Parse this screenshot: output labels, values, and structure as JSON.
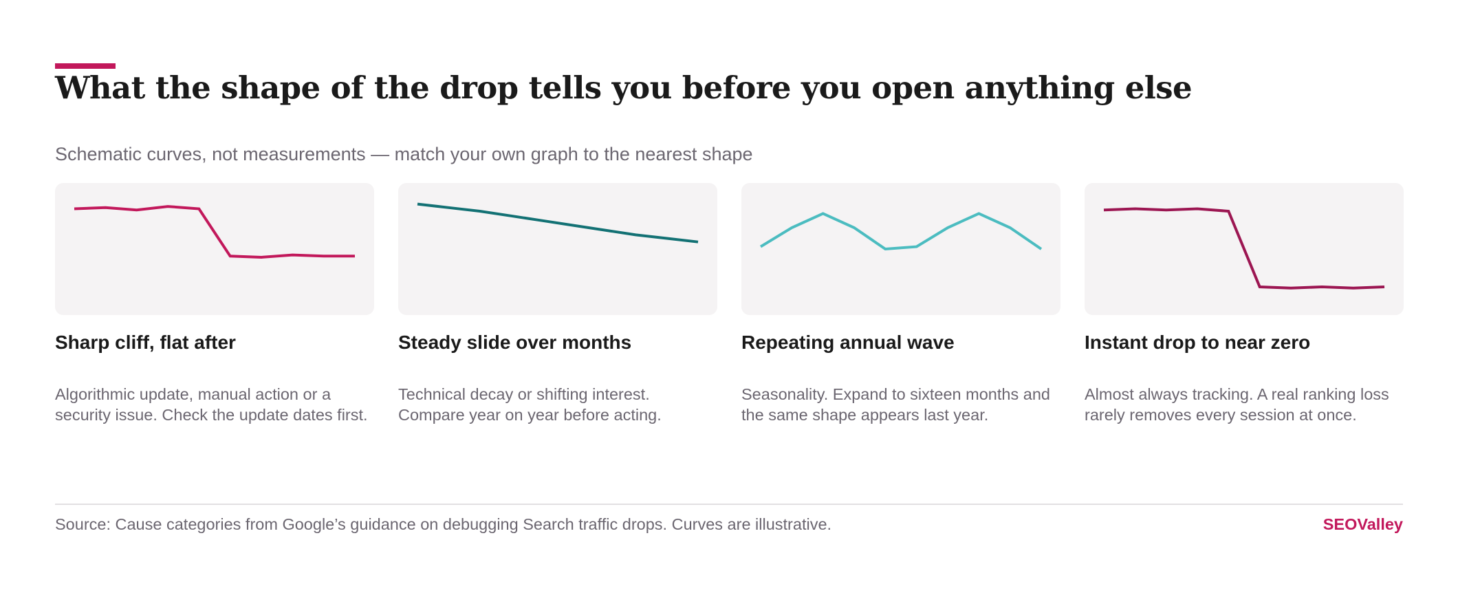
{
  "header": {
    "title": "What the shape of the drop tells you before you open anything else",
    "subtitle": "Schematic curves, not measurements — match your own graph to the nearest shape",
    "accent_color": "#c2185b"
  },
  "chart_data": [
    {
      "type": "line",
      "title": "Sharp cliff, flat after",
      "description": "Algorithmic update, manual action or a security issue. Check the update dates first.",
      "color": "#c2185b",
      "x": [
        0,
        1,
        2,
        3,
        4,
        5,
        6,
        7,
        8,
        9
      ],
      "values": [
        84,
        85,
        83,
        86,
        84,
        44,
        43,
        45,
        44,
        44
      ],
      "ylim": [
        0,
        100
      ],
      "grid": false
    },
    {
      "type": "line",
      "title": "Steady slide over months",
      "description": "Technical decay or shifting interest. Compare year on year before acting.",
      "color": "#137174",
      "x": [
        0,
        1,
        2,
        3,
        4,
        5,
        6,
        7,
        8,
        9
      ],
      "values": [
        88,
        85,
        82,
        78,
        74,
        70,
        66,
        62,
        59,
        56
      ],
      "ylim": [
        0,
        100
      ],
      "grid": false
    },
    {
      "type": "line",
      "title": "Repeating annual wave",
      "description": "Seasonality. Expand to sixteen months and the same shape appears last year.",
      "color": "#4bbcc0",
      "x": [
        0,
        1,
        2,
        3,
        4,
        5,
        6,
        7,
        8,
        9
      ],
      "values": [
        52,
        68,
        80,
        68,
        50,
        52,
        68,
        80,
        68,
        50
      ],
      "ylim": [
        0,
        100
      ],
      "grid": false
    },
    {
      "type": "line",
      "title": "Instant drop to near zero",
      "description": "Almost always tracking. A real ranking loss rarely removes every session at once.",
      "color": "#9c1652",
      "x": [
        0,
        1,
        2,
        3,
        4,
        5,
        6,
        7,
        8,
        9
      ],
      "values": [
        83,
        84,
        83,
        84,
        82,
        18,
        17,
        18,
        17,
        18
      ],
      "ylim": [
        0,
        100
      ],
      "grid": false
    }
  ],
  "footer": {
    "source": "Source: Cause categories from Google’s guidance on debugging Search traffic drops. Curves are illustrative.",
    "brand": "SEOValley"
  }
}
